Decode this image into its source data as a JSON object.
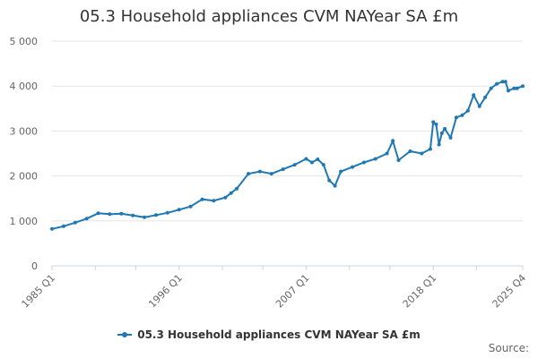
{
  "title": "05.3 Household appliances CVM NAYear SA £m",
  "source_label": "Source:",
  "colors": {
    "series": "#1f78b4",
    "grid": "#e6e6e6",
    "axis": "#ccd6eb"
  },
  "chart_data": {
    "type": "line",
    "title": "05.3 Household appliances CVM NAYear SA £m",
    "xlabel": "",
    "ylabel": "",
    "ylim": [
      0,
      5000
    ],
    "yticks": [
      0,
      1000,
      2000,
      3000,
      4000,
      5000
    ],
    "ytick_labels": [
      "0",
      "1 000",
      "2 000",
      "3 000",
      "4 000",
      "5 000"
    ],
    "xticks_shown": [
      "1985 Q1",
      "1996 Q1",
      "2007 Q1",
      "2018 Q1",
      "2025 Q4"
    ],
    "grid": true,
    "legend_position": "bottom",
    "series": [
      {
        "name": "05.3 Household appliances CVM NAYear SA £m",
        "x": [
          "1985 Q1",
          "1986 Q1",
          "1987 Q1",
          "1988 Q1",
          "1989 Q1",
          "1990 Q1",
          "1991 Q1",
          "1992 Q1",
          "1993 Q1",
          "1994 Q1",
          "1995 Q1",
          "1996 Q1",
          "1997 Q1",
          "1998 Q1",
          "1999 Q1",
          "2000 Q1",
          "2000 Q3",
          "2001 Q1",
          "2002 Q1",
          "2003 Q1",
          "2004 Q1",
          "2005 Q1",
          "2006 Q1",
          "2007 Q1",
          "2007 Q3",
          "2008 Q1",
          "2008 Q3",
          "2009 Q1",
          "2009 Q3",
          "2010 Q1",
          "2011 Q1",
          "2012 Q1",
          "2013 Q1",
          "2014 Q1",
          "2014 Q3",
          "2015 Q1",
          "2016 Q1",
          "2017 Q1",
          "2017 Q4",
          "2018 Q1",
          "2018 Q2",
          "2018 Q3",
          "2018 Q4",
          "2019 Q1",
          "2019 Q3",
          "2020 Q1",
          "2020 Q3",
          "2021 Q1",
          "2021 Q3",
          "2022 Q1",
          "2022 Q3",
          "2023 Q1",
          "2023 Q3",
          "2024 Q1",
          "2024 Q2",
          "2024 Q3",
          "2025 Q1",
          "2025 Q2",
          "2025 Q4"
        ],
        "values": [
          820,
          880,
          960,
          1050,
          1170,
          1150,
          1160,
          1120,
          1080,
          1130,
          1180,
          1250,
          1320,
          1480,
          1450,
          1520,
          1620,
          1720,
          2050,
          2100,
          2050,
          2150,
          2250,
          2380,
          2300,
          2370,
          2250,
          1900,
          1780,
          2100,
          2200,
          2300,
          2380,
          2500,
          2780,
          2350,
          2550,
          2500,
          2600,
          3200,
          3150,
          2700,
          2950,
          3050,
          2850,
          3300,
          3350,
          3450,
          3800,
          3550,
          3750,
          3950,
          4050,
          4100,
          4100,
          3900,
          3950,
          3950,
          4000
        ]
      }
    ]
  }
}
